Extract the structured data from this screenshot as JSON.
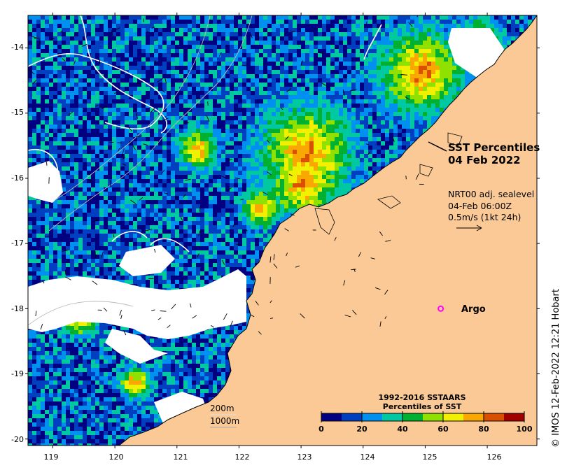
{
  "map": {
    "title_line1": "SST Percentiles",
    "title_line2": "04 Feb 2022",
    "current_line1": "NRT00 adj. sealevel",
    "current_line2": "04-Feb 06:00Z",
    "current_line3": "0.5m/s (1kt 24h)",
    "argo_label": "Argo",
    "contour_200": "200m",
    "contour_1000": "1000m",
    "credit": "© IMOS 12-Feb-2022 12:21 Hobart",
    "lat_ticks": [
      "-14",
      "-15",
      "-16",
      "-17",
      "-18",
      "-19",
      "-20"
    ],
    "lon_ticks": [
      "119",
      "120",
      "121",
      "122",
      "123",
      "124",
      "125",
      "126"
    ],
    "lat_range": [
      -20.1,
      -13.5
    ],
    "lon_range": [
      118.6,
      126.8
    ],
    "argo_position": {
      "lon": 125.25,
      "lat": -18.0
    },
    "colors": {
      "land": "#fbc996",
      "missing": "#ffffff",
      "argo_marker": "#ff00ff"
    }
  },
  "legend": {
    "title_line1": "1992-2016 SSTAARS",
    "title_line2": "Percentiles of SST",
    "tick_labels": [
      "0",
      "20",
      "40",
      "60",
      "80",
      "100"
    ],
    "colors": [
      "#000080",
      "#0040c0",
      "#0090f0",
      "#00c8a0",
      "#00b030",
      "#90e000",
      "#f0f000",
      "#f8a800",
      "#d85000",
      "#a00000"
    ]
  }
}
